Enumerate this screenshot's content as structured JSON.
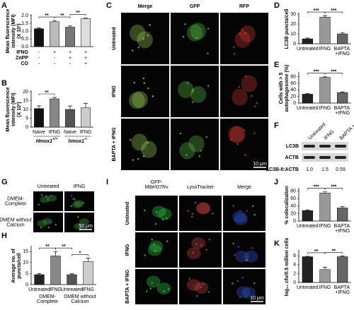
{
  "panel_labels": [
    "A",
    "B",
    "C",
    "D",
    "E",
    "F",
    "G",
    "H",
    "I",
    "J",
    "K"
  ],
  "chart_data": [
    {
      "type": "bar",
      "ylabel": [
        "Mean fluorescence",
        "intensity (MFI)",
        "(X 10³)"
      ],
      "categories": [
        null,
        null,
        null,
        null
      ],
      "values": [
        1.15,
        1.6,
        1.25,
        1.8
      ],
      "errors": [
        0.05,
        0.08,
        0.08,
        0.05
      ],
      "colors": [
        "#111111",
        "#bbbbbb",
        "#777777",
        "#dddddd"
      ],
      "ylim": [
        0,
        2
      ],
      "yticks": [
        {
          "value": 0,
          "label": "0.0"
        },
        {
          "value": 0.5,
          "label": "0.5"
        },
        {
          "value": 1,
          "label": "1.0"
        },
        {
          "value": 1.5,
          "label": "1.5"
        },
        {
          "value": 2,
          "label": "2.0"
        }
      ],
      "significance": [
        {
          "text": "**",
          "between": [
            0,
            1
          ]
        },
        {
          "text": "**",
          "between": [
            1,
            2
          ]
        },
        {
          "text": "**",
          "between": [
            2,
            3
          ]
        }
      ],
      "conditions": [
        {
          "name": "IFNG",
          "signs": [
            "-",
            "+",
            "+",
            "+"
          ]
        },
        {
          "name": "ZnPP",
          "signs": [
            "-",
            "-",
            "+",
            "+"
          ]
        },
        {
          "name": "CO",
          "signs": [
            "-",
            "-",
            "-",
            "+"
          ]
        }
      ]
    },
    {
      "type": "bar",
      "ylabel": [
        "Mean fluorescence",
        "intensity (MFI)",
        "(X 10³)"
      ],
      "categories": [
        "Naive",
        "IFNG",
        "Naive",
        "IFNG"
      ],
      "values": [
        10.5,
        16,
        10,
        11
      ],
      "errors": [
        1.5,
        0.8,
        2,
        2.5
      ],
      "colors": [
        "#111111",
        "#888888",
        "#555555",
        "#cccccc"
      ],
      "ylim": [
        0,
        20
      ],
      "yticks": [
        0,
        5,
        10,
        15,
        20
      ],
      "significance": [
        {
          "text": "**",
          "between": [
            0,
            1
          ]
        }
      ],
      "groups": [
        {
          "gene": "Hmox1",
          "genotype": "+/+",
          "categories": [
            0,
            1
          ]
        },
        {
          "gene": "hmox1",
          "genotype": "-/-",
          "categories": [
            2,
            3
          ]
        }
      ]
    },
    {
      "type": "bar",
      "ylabel": [
        "LC3B puncta/cell"
      ],
      "categories": [
        "Untreated",
        "IFNG",
        "BAPTA +IFNG"
      ],
      "values": [
        5,
        27,
        10
      ],
      "errors": [
        0.8,
        1.5,
        1.2
      ],
      "colors": [
        "#222222",
        "#999999",
        "#666666"
      ],
      "ylim": [
        0,
        30
      ],
      "yticks": [
        0,
        10,
        20,
        30
      ],
      "significance": [
        {
          "text": "***",
          "between": [
            0,
            1
          ]
        },
        {
          "text": "***",
          "between": [
            1,
            2
          ]
        }
      ]
    },
    {
      "type": "bar",
      "ylabel": [
        "Cells with > 5",
        "autophagosome (%)"
      ],
      "categories": [
        "Untreated",
        "IFNG",
        "BAPTA +IFNG"
      ],
      "values": [
        27,
        78,
        32
      ],
      "errors": [
        2,
        2,
        2
      ],
      "colors": [
        "#222222",
        "#999999",
        "#666666"
      ],
      "ylim": [
        0,
        90
      ],
      "yticks": [
        0,
        20,
        40,
        60,
        80
      ],
      "significance": [
        {
          "text": "***",
          "between": [
            0,
            1
          ]
        },
        {
          "text": "***",
          "between": [
            1,
            2
          ]
        }
      ]
    },
    {
      "type": "bar",
      "ylabel": [
        "Average no. of",
        "puncta/cell"
      ],
      "categories": [
        "Untreated",
        "IFNG",
        "Untreated",
        "IFNG"
      ],
      "values": [
        4.5,
        13,
        4.5,
        10.5
      ],
      "errors": [
        0.5,
        2,
        0.5,
        1.5
      ],
      "colors": [
        "#222222",
        "#888888",
        "#555555",
        "#cccccc"
      ],
      "ylim": [
        0,
        17
      ],
      "yticks": [
        0,
        5,
        10,
        15
      ],
      "significance": [
        {
          "text": "**",
          "between": [
            0,
            1
          ]
        },
        {
          "text": "**",
          "between": [
            1,
            2
          ]
        },
        {
          "text": "*",
          "between": [
            2,
            3
          ]
        }
      ],
      "groups": [
        {
          "lines": [
            "DMEM-",
            "Complete"
          ],
          "categories": [
            0,
            1
          ]
        },
        {
          "lines": [
            "DMEM without",
            "Calcium"
          ],
          "categories": [
            2,
            3
          ]
        }
      ]
    },
    {
      "type": "bar",
      "ylabel": [
        "% colocalization"
      ],
      "categories": [
        "Untreated",
        "IFNG",
        "BAPTA +IFNG"
      ],
      "values": [
        28,
        75,
        35
      ],
      "errors": [
        2,
        3,
        4
      ],
      "colors": [
        "#222222",
        "#999999",
        "#666666"
      ],
      "ylim": [
        0,
        85
      ],
      "yticks": [
        0,
        20,
        40,
        60,
        80
      ],
      "significance": [
        {
          "text": "***",
          "between": [
            0,
            1
          ]
        },
        {
          "text": "***",
          "between": [
            1,
            2
          ]
        }
      ]
    },
    {
      "type": "bar",
      "ylabel": [
        "log₁₀ cfu/0.5 million cells"
      ],
      "categories": [
        "Untreated",
        "IFNG",
        "BAPTA +IFNG"
      ],
      "values": [
        5.8,
        2.9,
        5.8
      ],
      "errors": [
        0.1,
        0.5,
        0.15
      ],
      "colors": [
        "#222222",
        "#999999",
        "#666666"
      ],
      "ylim": [
        0,
        7
      ],
      "yticks": [
        0,
        2,
        4,
        6
      ],
      "significance": [
        {
          "text": "**",
          "between": [
            0,
            1
          ]
        },
        {
          "text": "**",
          "between": [
            1,
            2
          ]
        }
      ]
    }
  ],
  "micrographs": [
    {
      "columns": [
        [
          "Merge"
        ],
        [
          "GFP"
        ],
        [
          "RFP"
        ]
      ],
      "rows": [
        [
          "Untreated"
        ],
        [
          "IFNG"
        ],
        [
          "BAPTA + IFNG"
        ]
      ],
      "scale_bar": "10 μm"
    },
    {
      "columns": [
        [
          "Untreated"
        ],
        [
          "IFNG"
        ]
      ],
      "rows": [
        [
          "DMEM-",
          "Complete"
        ],
        [
          "DMEM without",
          "Calcium"
        ]
      ],
      "scale_bar": "10 μm"
    },
    {
      "columns": [
        [
          "GFP-",
          "MtbH37Rv"
        ],
        [
          "LysoTracker"
        ],
        [
          "Merge"
        ]
      ],
      "rows": [
        [
          "Untreated"
        ],
        [
          "IFNG"
        ],
        [
          "BAPTA + IFNG"
        ]
      ],
      "scale_bar": "10 μm"
    }
  ],
  "blot": {
    "columns": [
      "Untreated",
      "IFNG",
      "BAPTA + IFNG"
    ],
    "bands": [
      "LC3B",
      "ACTB"
    ],
    "ratio_label": "LC3B-II:ACTB",
    "ratios": [
      "1.0",
      "1.5",
      "0.59"
    ]
  }
}
